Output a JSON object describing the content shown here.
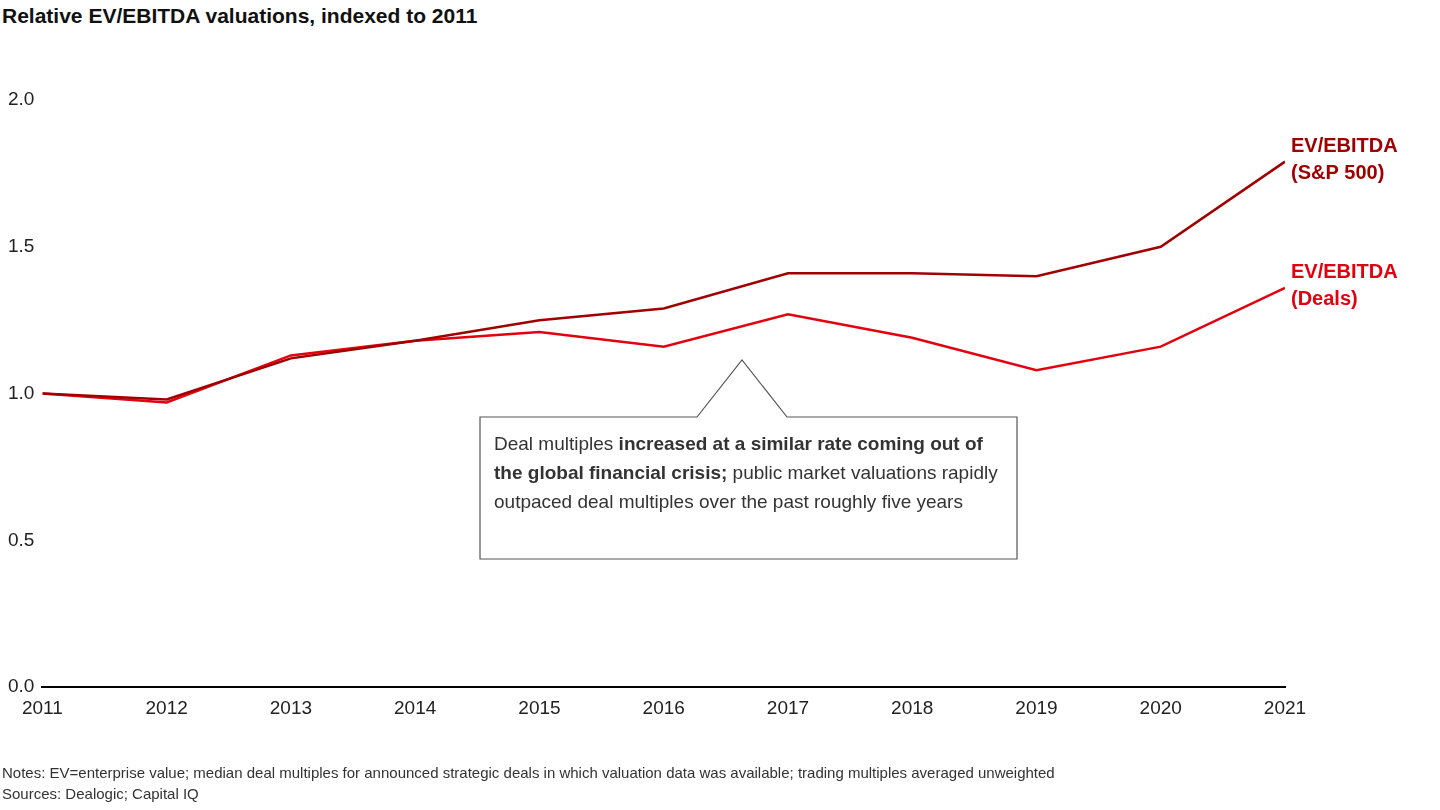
{
  "chart_data": {
    "type": "line",
    "title": "Relative EV/EBITDA valuations, indexed to 2011",
    "categories": [
      "2011",
      "2012",
      "2013",
      "2014",
      "2015",
      "2016",
      "2017",
      "2018",
      "2019",
      "2020",
      "2021"
    ],
    "series": [
      {
        "name": "EV/EBITDA (S&P 500)",
        "color": "#a00000",
        "values": [
          1.0,
          0.98,
          1.12,
          1.18,
          1.25,
          1.29,
          1.41,
          1.41,
          1.4,
          1.5,
          1.79
        ]
      },
      {
        "name": "EV/EBITDA (Deals)",
        "color": "#e3000f",
        "values": [
          1.0,
          0.97,
          1.13,
          1.18,
          1.21,
          1.16,
          1.27,
          1.19,
          1.08,
          1.16,
          1.36
        ]
      }
    ],
    "ylim": [
      0,
      2
    ],
    "yticks": [
      {
        "value": 0,
        "label": "0.0"
      },
      0.5,
      {
        "value": 1,
        "label": "1.0"
      },
      1.5,
      {
        "value": 2,
        "label": "2.0"
      }
    ],
    "grid": false,
    "annotation": {
      "text": "Deal multiples increased at a similar rate coming out of the global financial crisis; public market valuations rapidly outpaced deal multiples over the past roughly five years",
      "bold": "increased at a similar rate coming out of the global financial crisis;"
    },
    "notes": "Notes: EV=enterprise value; median deal multiples for announced strategic deals in which valuation data was available; trading multiples averaged unweighted",
    "sources": "Sources: Dealogic; Capital IQ"
  }
}
